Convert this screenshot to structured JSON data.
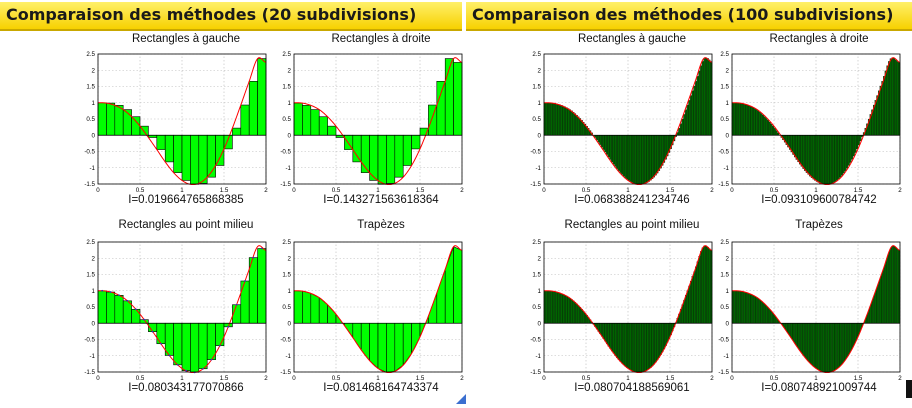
{
  "colors": {
    "banner": "#f7d100",
    "bars_left": "#00ff00",
    "bars_right": "#006400",
    "curve": "#ff0000",
    "curve_right": "#ff0000"
  },
  "panels": [
    {
      "title": "Comparaison des méthodes (20 subdivisions)",
      "plots": [
        {
          "title": "Rectangles à gauche",
          "integral": "I=0.019664765868385"
        },
        {
          "title": "Rectangles à droite",
          "integral": "I=0.143271563618364"
        },
        {
          "title": "Rectangles au point milieu",
          "integral": "I=0.080343177070866"
        },
        {
          "title": "Trapèzes",
          "integral": "I=0.081468164743374"
        }
      ]
    },
    {
      "title": "Comparaison des méthodes (100 subdivisions)",
      "plots": [
        {
          "title": "Rectangles à gauche",
          "integral": "I=0.068388241234746"
        },
        {
          "title": "Rectangles à droite",
          "integral": "I=0.093109600784742"
        },
        {
          "title": "Rectangles au point milieu",
          "integral": "I=0.080704188569061"
        },
        {
          "title": "Trapèzes",
          "integral": "I=0.080748921009744"
        }
      ]
    }
  ],
  "chart_data": [
    {
      "type": "bar",
      "title": "Rectangles à gauche",
      "method": "left",
      "subdivisions": 20,
      "integral": "I=0.019664765868385",
      "x": [
        0,
        0.1,
        0.2,
        0.3,
        0.4,
        0.5,
        0.6,
        0.7,
        0.8,
        0.9,
        1.0,
        1.1,
        1.2,
        1.3,
        1.4,
        1.5,
        1.6,
        1.7,
        1.8,
        1.9
      ],
      "values": [
        1.0,
        0.99,
        0.92,
        0.79,
        0.57,
        0.28,
        -0.07,
        -0.44,
        -0.82,
        -1.15,
        -1.39,
        -1.51,
        -1.48,
        -1.29,
        -0.93,
        -0.42,
        0.22,
        0.93,
        1.66,
        2.36
      ],
      "xlim": [
        0,
        2
      ],
      "ylim": [
        -1.5,
        2.5
      ],
      "xticks": [
        "0",
        "0.5",
        "1",
        "1.5",
        "2"
      ],
      "yticks": [
        "-1.5",
        "-1",
        "-0.5",
        "0",
        "0.5",
        "1",
        "1.5",
        "2",
        "2.5"
      ]
    },
    {
      "type": "bar",
      "title": "Rectangles à droite",
      "method": "right",
      "subdivisions": 20,
      "integral": "I=0.143271563618364",
      "x": [
        0.1,
        0.2,
        0.3,
        0.4,
        0.5,
        0.6,
        0.7,
        0.8,
        0.9,
        1.0,
        1.1,
        1.2,
        1.3,
        1.4,
        1.5,
        1.6,
        1.7,
        1.8,
        1.9,
        2.0
      ],
      "values": [
        0.99,
        0.92,
        0.79,
        0.57,
        0.28,
        -0.07,
        -0.44,
        -0.82,
        -1.15,
        -1.39,
        -1.51,
        -1.48,
        -1.29,
        -0.93,
        -0.42,
        0.22,
        0.93,
        1.66,
        2.36,
        2.24
      ],
      "xlim": [
        0,
        2
      ],
      "ylim": [
        -1.5,
        2.5
      ],
      "xticks": [
        "0",
        "0.5",
        "1",
        "1.5",
        "2"
      ],
      "yticks": [
        "-1.5",
        "-1",
        "-0.5",
        "0",
        "0.5",
        "1",
        "1.5",
        "2",
        "2.5"
      ]
    },
    {
      "type": "bar",
      "title": "Rectangles au point milieu",
      "method": "mid",
      "subdivisions": 20,
      "integral": "I=0.080343177070866",
      "x": [
        0.05,
        0.15,
        0.25,
        0.35,
        0.45,
        0.55,
        0.65,
        0.75,
        0.85,
        0.95,
        1.05,
        1.15,
        1.25,
        1.35,
        1.45,
        1.55,
        1.65,
        1.75,
        1.85,
        1.95
      ],
      "values": [
        1.0,
        0.96,
        0.86,
        0.69,
        0.43,
        0.11,
        -0.26,
        -0.63,
        -0.99,
        -1.28,
        -1.46,
        -1.51,
        -1.4,
        -1.12,
        -0.69,
        -0.11,
        0.57,
        1.3,
        2.02,
        2.3
      ],
      "xlim": [
        0,
        2
      ],
      "ylim": [
        -1.5,
        2.5
      ],
      "xticks": [
        "0",
        "0.5",
        "1",
        "1.5",
        "2"
      ],
      "yticks": [
        "-1.5",
        "-1",
        "-0.5",
        "0",
        "0.5",
        "1",
        "1.5",
        "2",
        "2.5"
      ]
    },
    {
      "type": "area",
      "title": "Trapèzes",
      "method": "trap",
      "subdivisions": 20,
      "integral": "I=0.081468164743374",
      "x": [
        0,
        0.1,
        0.2,
        0.3,
        0.4,
        0.5,
        0.6,
        0.7,
        0.8,
        0.9,
        1.0,
        1.1,
        1.2,
        1.3,
        1.4,
        1.5,
        1.6,
        1.7,
        1.8,
        1.9,
        2.0
      ],
      "values": [
        1.0,
        0.99,
        0.92,
        0.79,
        0.57,
        0.28,
        -0.07,
        -0.44,
        -0.82,
        -1.15,
        -1.39,
        -1.51,
        -1.48,
        -1.29,
        -0.93,
        -0.42,
        0.22,
        0.93,
        1.66,
        2.36,
        2.24
      ],
      "xlim": [
        0,
        2
      ],
      "ylim": [
        -1.5,
        2.5
      ],
      "xticks": [
        "0",
        "0.5",
        "1",
        "1.5",
        "2"
      ],
      "yticks": [
        "-1.5",
        "-1",
        "-0.5",
        "0",
        "0.5",
        "1",
        "1.5",
        "2",
        "2.5"
      ]
    },
    {
      "type": "bar",
      "title": "Rectangles à gauche",
      "method": "left",
      "subdivisions": 100,
      "integral": "I=0.068388241234746",
      "x": [
        0,
        0.1,
        0.2,
        0.3,
        0.4,
        0.5,
        0.6,
        0.7,
        0.8,
        0.9,
        1.0,
        1.1,
        1.2,
        1.3,
        1.4,
        1.5,
        1.6,
        1.7,
        1.8,
        1.9,
        2.0
      ],
      "values": [
        1.0,
        0.99,
        0.92,
        0.79,
        0.57,
        0.28,
        -0.07,
        -0.44,
        -0.82,
        -1.15,
        -1.39,
        -1.51,
        -1.48,
        -1.29,
        -0.93,
        -0.42,
        0.22,
        0.93,
        1.66,
        2.36,
        2.24
      ],
      "xlim": [
        0,
        2
      ],
      "ylim": [
        -1.5,
        2.5
      ],
      "xticks": [
        "0",
        "0.5",
        "1",
        "1.5",
        "2"
      ],
      "yticks": [
        "-1.5",
        "-1",
        "-0.5",
        "0",
        "0.5",
        "1",
        "1.5",
        "2",
        "2.5"
      ]
    },
    {
      "type": "bar",
      "title": "Rectangles à droite",
      "method": "right",
      "subdivisions": 100,
      "integral": "I=0.093109600784742",
      "x": [
        0,
        0.1,
        0.2,
        0.3,
        0.4,
        0.5,
        0.6,
        0.7,
        0.8,
        0.9,
        1.0,
        1.1,
        1.2,
        1.3,
        1.4,
        1.5,
        1.6,
        1.7,
        1.8,
        1.9,
        2.0
      ],
      "values": [
        1.0,
        0.99,
        0.92,
        0.79,
        0.57,
        0.28,
        -0.07,
        -0.44,
        -0.82,
        -1.15,
        -1.39,
        -1.51,
        -1.48,
        -1.29,
        -0.93,
        -0.42,
        0.22,
        0.93,
        1.66,
        2.36,
        2.24
      ],
      "xlim": [
        0,
        2
      ],
      "ylim": [
        -1.5,
        2.5
      ],
      "xticks": [
        "0",
        "0.5",
        "1",
        "1.5",
        "2"
      ],
      "yticks": [
        "-1.5",
        "-1",
        "-0.5",
        "0",
        "0.5",
        "1",
        "1.5",
        "2",
        "2.5"
      ]
    },
    {
      "type": "bar",
      "title": "Rectangles au point milieu",
      "method": "mid",
      "subdivisions": 100,
      "integral": "I=0.080704188569061",
      "x": [
        0,
        0.1,
        0.2,
        0.3,
        0.4,
        0.5,
        0.6,
        0.7,
        0.8,
        0.9,
        1.0,
        1.1,
        1.2,
        1.3,
        1.4,
        1.5,
        1.6,
        1.7,
        1.8,
        1.9,
        2.0
      ],
      "values": [
        1.0,
        0.99,
        0.92,
        0.79,
        0.57,
        0.28,
        -0.07,
        -0.44,
        -0.82,
        -1.15,
        -1.39,
        -1.51,
        -1.48,
        -1.29,
        -0.93,
        -0.42,
        0.22,
        0.93,
        1.66,
        2.36,
        2.24
      ],
      "xlim": [
        0,
        2
      ],
      "ylim": [
        -1.5,
        2.5
      ],
      "xticks": [
        "0",
        "0.5",
        "1",
        "1.5",
        "2"
      ],
      "yticks": [
        "-1.5",
        "-1",
        "-0.5",
        "0",
        "0.5",
        "1",
        "1.5",
        "2",
        "2.5"
      ]
    },
    {
      "type": "area",
      "title": "Trapèzes",
      "method": "trap",
      "subdivisions": 100,
      "integral": "I=0.080748921009744",
      "x": [
        0,
        0.1,
        0.2,
        0.3,
        0.4,
        0.5,
        0.6,
        0.7,
        0.8,
        0.9,
        1.0,
        1.1,
        1.2,
        1.3,
        1.4,
        1.5,
        1.6,
        1.7,
        1.8,
        1.9,
        2.0
      ],
      "values": [
        1.0,
        0.99,
        0.92,
        0.79,
        0.57,
        0.28,
        -0.07,
        -0.44,
        -0.82,
        -1.15,
        -1.39,
        -1.51,
        -1.48,
        -1.29,
        -0.93,
        -0.42,
        0.22,
        0.93,
        1.66,
        2.36,
        2.24
      ],
      "xlim": [
        0,
        2
      ],
      "ylim": [
        -1.5,
        2.5
      ],
      "xticks": [
        "0",
        "0.5",
        "1",
        "1.5",
        "2"
      ],
      "yticks": [
        "-1.5",
        "-1",
        "-0.5",
        "0",
        "0.5",
        "1",
        "1.5",
        "2",
        "2.5"
      ]
    }
  ]
}
